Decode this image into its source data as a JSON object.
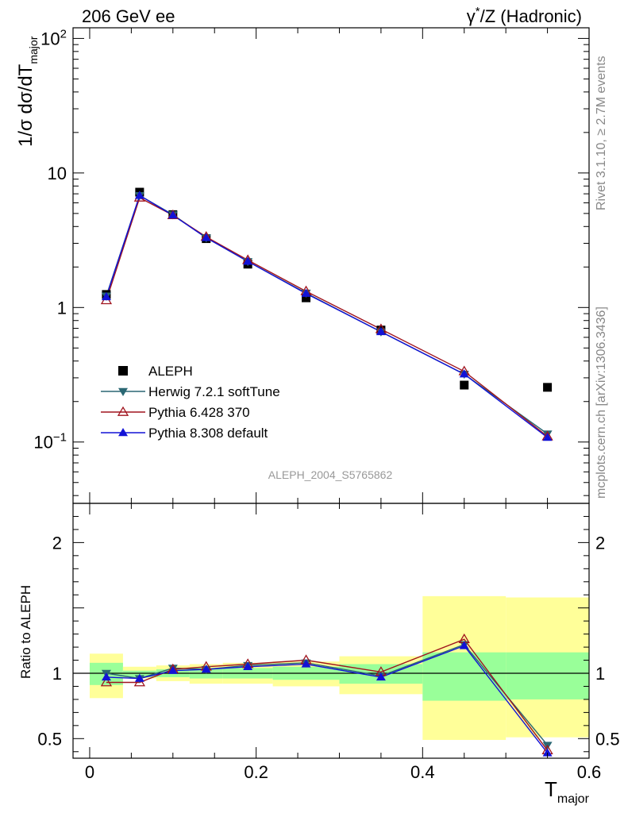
{
  "header": {
    "left": "206 GeV ee",
    "right_prefix": "γ",
    "right_sup": "*",
    "right_suffix": "/Z (Hadronic)"
  },
  "side_labels": {
    "rivet": "Rivet 3.1.10, ≥ 2.7M events",
    "mcplots": "mcplots.cern.ch [arXiv:1306.3436]"
  },
  "analysis_id": "ALEPH_2004_S5765862",
  "colors": {
    "data": "#000000",
    "herwig": "#2a6773",
    "pythia6": "#a0141e",
    "pythia8": "#1212d6",
    "band_inner": "#99ff99",
    "band_outer": "#ffff99"
  },
  "chart_data": [
    {
      "type": "line",
      "panel": "main",
      "scale": "log",
      "ylabel": "1/σ dσ/dT_major",
      "ylabel_parts": {
        "pre": "1/σ  dσ/dT",
        "sub": "major"
      },
      "xlim": [
        -0.02,
        0.6
      ],
      "ylim": [
        0.035,
        120
      ],
      "yticks": [
        {
          "value": 0.1,
          "label": "10",
          "sup": "−1"
        },
        {
          "value": 1,
          "label": "1",
          "sup": ""
        },
        {
          "value": 10,
          "label": "10",
          "sup": ""
        },
        {
          "value": 100,
          "label": "10",
          "sup": "2"
        }
      ],
      "legend_position": "middle-left",
      "x": [
        0.02,
        0.06,
        0.1,
        0.14,
        0.19,
        0.26,
        0.35,
        0.45,
        0.55
      ],
      "series": [
        {
          "name": "ALEPH",
          "key": "data",
          "marker": "square",
          "values": [
            1.25,
            7.2,
            4.9,
            3.25,
            2.1,
            1.18,
            0.68,
            0.265,
            0.255
          ]
        },
        {
          "name": "Herwig 7.2.1 softTune",
          "key": "herwig",
          "marker": "triangle-down",
          "values": [
            1.22,
            6.8,
            4.9,
            3.3,
            2.2,
            1.28,
            0.66,
            0.32,
            0.115
          ]
        },
        {
          "name": "Pythia 6.428 370",
          "key": "pythia6",
          "marker": "triangle-up-open",
          "values": [
            1.13,
            6.55,
            4.85,
            3.35,
            2.25,
            1.32,
            0.69,
            0.335,
            0.11
          ]
        },
        {
          "name": "Pythia 8.308 default",
          "key": "pythia8",
          "marker": "triangle-up",
          "values": [
            1.2,
            6.8,
            4.85,
            3.3,
            2.2,
            1.27,
            0.66,
            0.32,
            0.108
          ]
        }
      ]
    },
    {
      "type": "line",
      "panel": "ratio",
      "scale": "linear",
      "ylabel": "Ratio to ALEPH",
      "xlabel": "T_major",
      "xlabel_parts": {
        "pre": "T",
        "sub": "major"
      },
      "xlim": [
        -0.02,
        0.6
      ],
      "ylim": [
        0.35,
        2.3
      ],
      "xticks": [
        0,
        0.2,
        0.4,
        0.6
      ],
      "xticklabels": [
        "0",
        "0.2",
        "0.4",
        "0.6"
      ],
      "yticks": [
        0.5,
        1,
        2
      ],
      "yticklabels": [
        "0.5",
        "1",
        "2"
      ],
      "bands": [
        {
          "x0": 0.0,
          "x1": 0.04,
          "inner": [
            0.91,
            1.08
          ],
          "outer": [
            0.81,
            1.15
          ]
        },
        {
          "x0": 0.04,
          "x1": 0.08,
          "inner": [
            0.97,
            1.02
          ],
          "outer": [
            0.96,
            1.05
          ]
        },
        {
          "x0": 0.08,
          "x1": 0.12,
          "inner": [
            0.97,
            1.03
          ],
          "outer": [
            0.94,
            1.06
          ]
        },
        {
          "x0": 0.12,
          "x1": 0.16,
          "inner": [
            0.96,
            1.04
          ],
          "outer": [
            0.92,
            1.07
          ]
        },
        {
          "x0": 0.16,
          "x1": 0.22,
          "inner": [
            0.96,
            1.04
          ],
          "outer": [
            0.92,
            1.08
          ]
        },
        {
          "x0": 0.22,
          "x1": 0.3,
          "inner": [
            0.95,
            1.05
          ],
          "outer": [
            0.9,
            1.09
          ]
        },
        {
          "x0": 0.3,
          "x1": 0.4,
          "inner": [
            0.92,
            1.07
          ],
          "outer": [
            0.84,
            1.13
          ]
        },
        {
          "x0": 0.4,
          "x1": 0.5,
          "inner": [
            0.79,
            1.16
          ],
          "outer": [
            0.49,
            1.59
          ]
        },
        {
          "x0": 0.5,
          "x1": 0.6,
          "inner": [
            0.8,
            1.16
          ],
          "outer": [
            0.51,
            1.58
          ]
        }
      ],
      "x": [
        0.02,
        0.06,
        0.1,
        0.14,
        0.19,
        0.26,
        0.35,
        0.45,
        0.55
      ],
      "series": [
        {
          "name": "Herwig 7.2.1 softTune",
          "key": "herwig",
          "marker": "triangle-down",
          "values": [
            1.0,
            0.96,
            1.04,
            1.03,
            1.06,
            1.08,
            0.98,
            1.22,
            0.45
          ]
        },
        {
          "name": "Pythia 6.428 370",
          "key": "pythia6",
          "marker": "triangle-up-open",
          "values": [
            0.93,
            0.93,
            1.03,
            1.05,
            1.07,
            1.1,
            1.01,
            1.26,
            0.41
          ]
        },
        {
          "name": "Pythia 8.308 default",
          "key": "pythia8",
          "marker": "triangle-up",
          "values": [
            0.97,
            0.96,
            1.02,
            1.03,
            1.05,
            1.07,
            0.97,
            1.21,
            0.39
          ]
        }
      ]
    }
  ]
}
